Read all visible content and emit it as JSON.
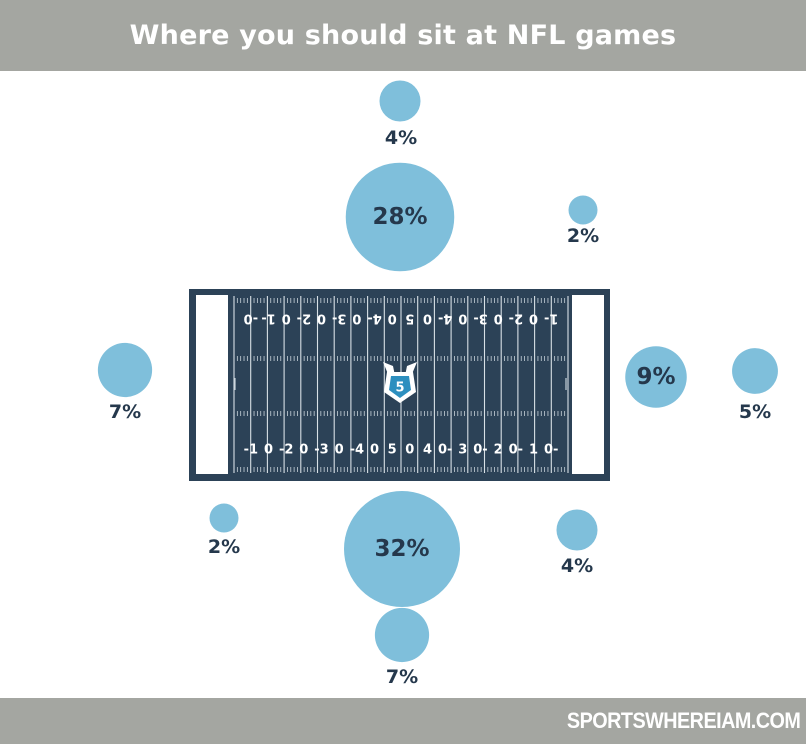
{
  "header": {
    "title": "Where you should sit at NFL games"
  },
  "footer": {
    "brand": "SPORTSWHEREIAM.COM"
  },
  "field": {
    "top_yard_numbers": [
      "-0",
      "1-",
      "0",
      "2-",
      "0",
      "3-",
      "0",
      "4-",
      "0",
      "5",
      "0",
      "4-",
      "0",
      "3-",
      "0",
      "2-",
      "0",
      "1-"
    ],
    "bottom_yard_numbers": [
      "-1",
      "0",
      "-2",
      "0",
      "-3",
      "0",
      "-4",
      "0",
      "5",
      "0",
      "4",
      "0-",
      "3",
      "0-",
      "2",
      "0-",
      "1",
      "0-"
    ],
    "logo_letter": "5"
  },
  "colors": {
    "bubble": "#7fbfdb",
    "field": "#2c4257",
    "label": "#25384c",
    "banner": "#a4a6a1"
  },
  "chart_data": {
    "type": "bubble",
    "title": "Where you should sit at NFL games",
    "unit": "%",
    "points": [
      {
        "section": "north-far",
        "value": 4,
        "label": "4%"
      },
      {
        "section": "north-center",
        "value": 28,
        "label": "28%"
      },
      {
        "section": "north-east-corner",
        "value": 2,
        "label": "2%"
      },
      {
        "section": "west-end-zone",
        "value": 7,
        "label": "7%"
      },
      {
        "section": "east-end-zone",
        "value": 9,
        "label": "9%"
      },
      {
        "section": "east-far",
        "value": 5,
        "label": "5%"
      },
      {
        "section": "south-west-corner",
        "value": 2,
        "label": "2%"
      },
      {
        "section": "south-center",
        "value": 32,
        "label": "32%"
      },
      {
        "section": "south-east-corner",
        "value": 4,
        "label": "4%"
      },
      {
        "section": "south-far",
        "value": 7,
        "label": "7%"
      }
    ]
  }
}
